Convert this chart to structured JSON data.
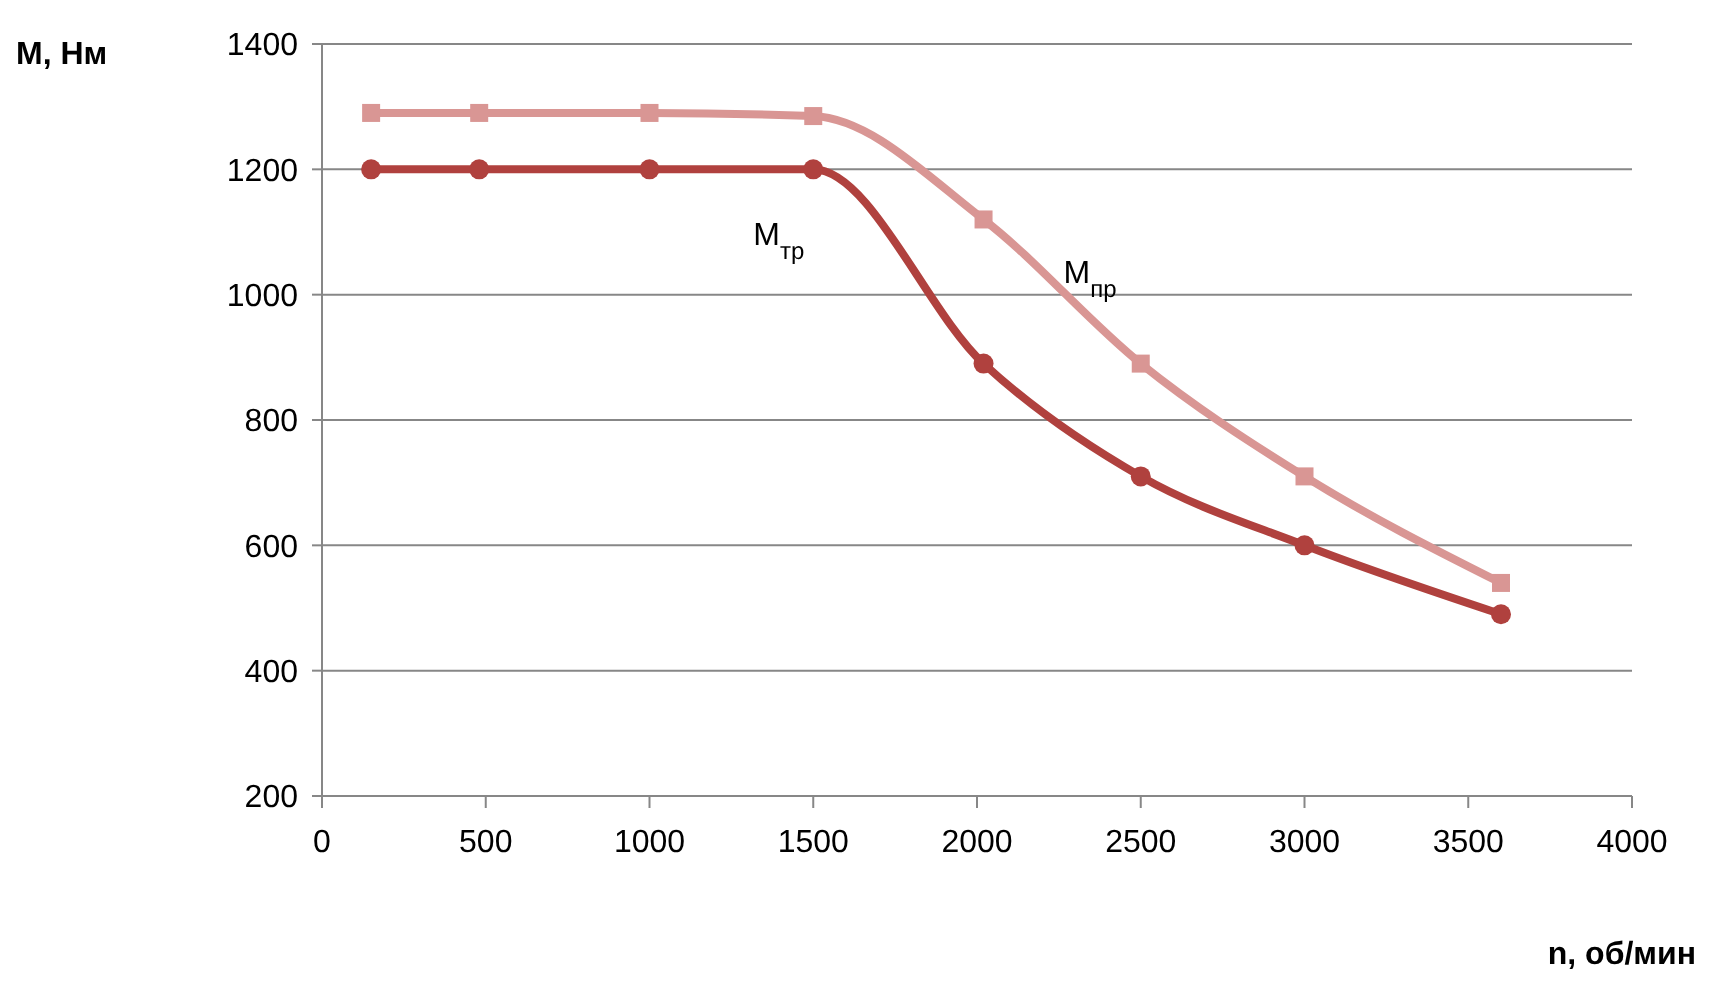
{
  "chart_data": {
    "type": "line",
    "xlabel": "n, об/мин",
    "ylabel": "М, Нм",
    "xlim": [
      0,
      4000
    ],
    "xticks": [
      0,
      500,
      1000,
      1500,
      2000,
      2500,
      3000,
      3500,
      4000
    ],
    "ylim": [
      200,
      1400
    ],
    "yticks": [
      200,
      400,
      600,
      800,
      1000,
      1200,
      1400
    ],
    "grid": "y",
    "line_style": "solid",
    "series": [
      {
        "name": "М$_{тр}$",
        "color": "#b0413e",
        "marker": "circle",
        "x": [
          150,
          480,
          1000,
          1500,
          2020,
          2500,
          3000,
          3600
        ],
        "values": [
          1200,
          1200,
          1200,
          1200,
          890,
          710,
          600,
          490
        ]
      },
      {
        "name": "М$_{пр}$",
        "color": "#d99694",
        "marker": "square",
        "x": [
          150,
          480,
          1000,
          1500,
          2020,
          2500,
          3000,
          3600
        ],
        "values": [
          1290,
          1290,
          1290,
          1285,
          1120,
          890,
          710,
          540
        ]
      }
    ]
  }
}
